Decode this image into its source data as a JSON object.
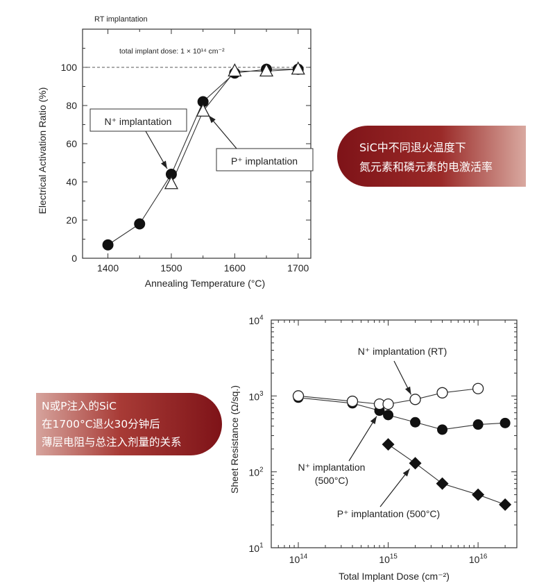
{
  "captions": {
    "top": [
      "SiC中不同退火温度下",
      "氮元素和磷元素的电激活率"
    ],
    "bottom": [
      "N或P注入的SiC",
      "在1700°C退火30分钟后",
      "薄层电阻与总注入剂量的关系"
    ]
  },
  "chart_data": [
    {
      "type": "line",
      "title": "RT implantation",
      "annotation": "total implant dose: 1 × 10¹⁴ cm⁻²",
      "xlabel": "Annealing Temperature (°C)",
      "ylabel": "Electrical Activation Ratio (%)",
      "xlim": [
        1360,
        1720
      ],
      "ylim": [
        0,
        120
      ],
      "xticks": [
        1400,
        1500,
        1600,
        1700
      ],
      "yticks": [
        0,
        20,
        40,
        60,
        80,
        100
      ],
      "reference_line": 100,
      "series": [
        {
          "name": "N⁺ implantation",
          "marker": "filled-circle",
          "x": [
            1400,
            1450,
            1500,
            1550,
            1600,
            1650,
            1700
          ],
          "y": [
            7,
            18,
            44,
            82,
            97,
            99,
            99
          ]
        },
        {
          "name": "P⁺ implantation",
          "marker": "open-triangle",
          "x": [
            1500,
            1550,
            1600,
            1650,
            1700
          ],
          "y": [
            39,
            77,
            98,
            98,
            99
          ]
        }
      ]
    },
    {
      "type": "line",
      "xlabel": "Total Implant Dose (cm⁻²)",
      "ylabel": "Sheet Resistance (Ω/sq.)",
      "xscale": "log",
      "yscale": "log",
      "xlim": [
        50000000000000.0,
        2.7e+16
      ],
      "ylim": [
        10,
        10000
      ],
      "xticks": [
        "10¹⁴",
        "10¹⁵",
        "10¹⁶"
      ],
      "yticks": [
        "10¹",
        "10²",
        "10³",
        "10⁴"
      ],
      "series": [
        {
          "name": "N⁺ implantation (RT)",
          "marker": "open-circle",
          "x": [
            100000000000000.0,
            400000000000000.0,
            800000000000000.0,
            1000000000000000.0,
            2000000000000000.0,
            4000000000000000.0,
            1e+16
          ],
          "y": [
            1000,
            850,
            780,
            780,
            900,
            1100,
            1250
          ]
        },
        {
          "name": "N⁺ implantation (500°C)",
          "marker": "filled-circle",
          "x": [
            100000000000000.0,
            400000000000000.0,
            800000000000000.0,
            1000000000000000.0,
            2000000000000000.0,
            4000000000000000.0,
            1e+16,
            2e+16
          ],
          "y": [
            950,
            800,
            640,
            560,
            450,
            360,
            420,
            440
          ]
        },
        {
          "name": "P⁺ implantation (500°C)",
          "marker": "filled-diamond",
          "x": [
            1000000000000000.0,
            2000000000000000.0,
            4000000000000000.0,
            1e+16,
            2e+16
          ],
          "y": [
            230,
            130,
            70,
            50,
            37
          ]
        }
      ]
    }
  ],
  "labels": {
    "c1_n": "N⁺ implantation",
    "c1_p": "P⁺ implantation",
    "c2_nrt": "N⁺ implantation (RT)",
    "c2_n500_a": "N⁺ implantation",
    "c2_n500_b": "(500°C)",
    "c2_p500": "P⁺ implantation (500°C)"
  },
  "colors": {
    "caption_dark": "#7e1318",
    "caption_light": "#d9a9a0"
  }
}
